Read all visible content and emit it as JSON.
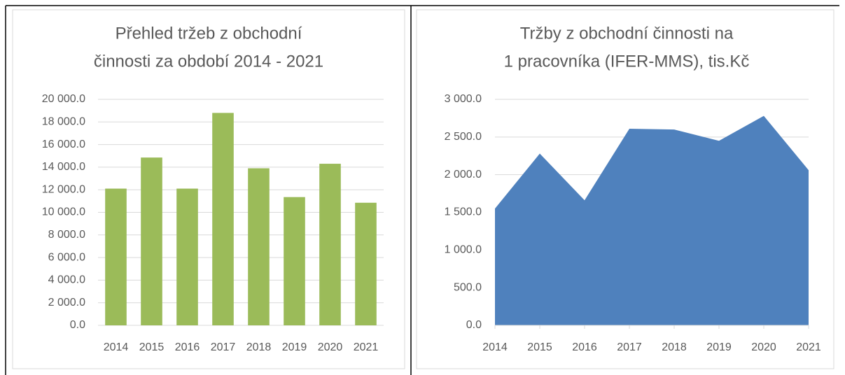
{
  "chart_data": [
    {
      "type": "bar",
      "title": [
        "Přehled tržeb z obchodní",
        "činnosti za období 2014 - 2021"
      ],
      "categories": [
        "2014",
        "2015",
        "2016",
        "2017",
        "2018",
        "2019",
        "2020",
        "2021"
      ],
      "values": [
        12100,
        14850,
        12100,
        18800,
        13900,
        11350,
        14300,
        10850
      ],
      "color": "#9bbb59",
      "ylim": [
        0,
        20000
      ],
      "yticks": [
        {
          "value": 0,
          "label": "0.0"
        },
        {
          "value": 2000,
          "label": "2 000.0"
        },
        {
          "value": 4000,
          "label": "4 000.0"
        },
        {
          "value": 6000,
          "label": "6 000.0"
        },
        {
          "value": 8000,
          "label": "8 000.0"
        },
        {
          "value": 10000,
          "label": "10 000.0"
        },
        {
          "value": 12000,
          "label": "12 000.0"
        },
        {
          "value": 14000,
          "label": "14 000.0"
        },
        {
          "value": 16000,
          "label": "16 000.0"
        },
        {
          "value": 18000,
          "label": "18 000.0"
        },
        {
          "value": 20000,
          "label": "20 000.0"
        }
      ],
      "grid": true
    },
    {
      "type": "area",
      "title": [
        "Tržby z obchodní činnosti na",
        "1 pracovníka (IFER-MMS), tis.Kč"
      ],
      "categories": [
        "2014",
        "2015",
        "2016",
        "2017",
        "2018",
        "2019",
        "2020",
        "2021"
      ],
      "values": [
        1550,
        2280,
        1660,
        2610,
        2600,
        2450,
        2780,
        2060
      ],
      "color": "#4f81bd",
      "ylim": [
        0,
        3000
      ],
      "yticks": [
        {
          "value": 0,
          "label": "0.0"
        },
        {
          "value": 500,
          "label": "500.0"
        },
        {
          "value": 1000,
          "label": "1 000.0"
        },
        {
          "value": 1500,
          "label": "1 500.0"
        },
        {
          "value": 2000,
          "label": "2 000.0"
        },
        {
          "value": 2500,
          "label": "2 500.0"
        },
        {
          "value": 3000,
          "label": "3 000.0"
        }
      ],
      "grid": true
    }
  ]
}
